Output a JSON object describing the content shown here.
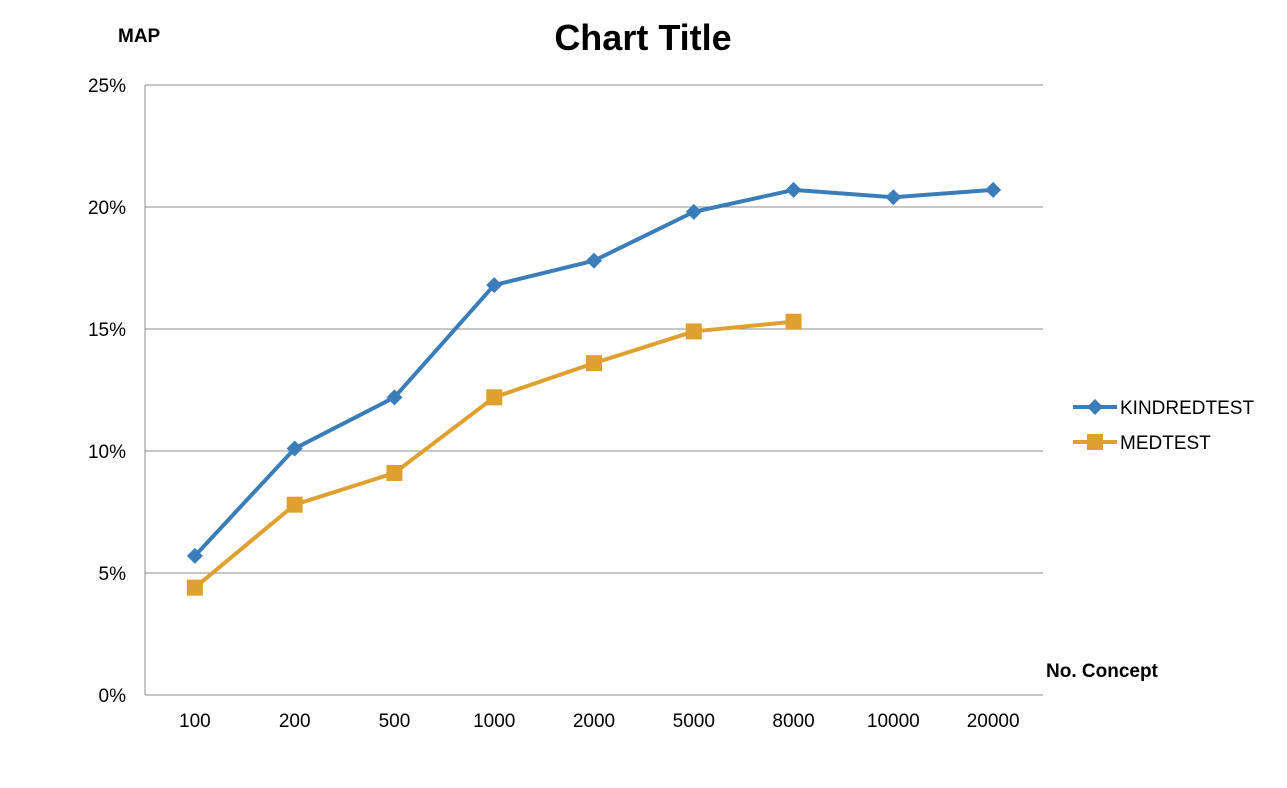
{
  "chart_data": {
    "type": "line",
    "title": "Chart Title",
    "ylabel": "MAP",
    "xlabel": "No. Concept",
    "categories": [
      "100",
      "200",
      "500",
      "1000",
      "2000",
      "5000",
      "8000",
      "10000",
      "20000"
    ],
    "y_tick_labels": [
      "0%",
      "5%",
      "10%",
      "15%",
      "20%",
      "25%"
    ],
    "ylim": [
      0,
      25
    ],
    "y_unit": "%",
    "grid": "horizontal",
    "legend_position": "right",
    "series": [
      {
        "name": "KINDREDTEST",
        "marker": "diamond",
        "color": "#3A7DB8",
        "values": [
          5.7,
          10.1,
          12.2,
          16.8,
          17.8,
          19.8,
          20.7,
          20.4,
          20.7
        ]
      },
      {
        "name": "MEDTEST",
        "marker": "square",
        "color": "#E0A030",
        "values": [
          4.4,
          7.8,
          9.1,
          12.2,
          13.6,
          14.9,
          15.3,
          null,
          null
        ]
      }
    ]
  }
}
